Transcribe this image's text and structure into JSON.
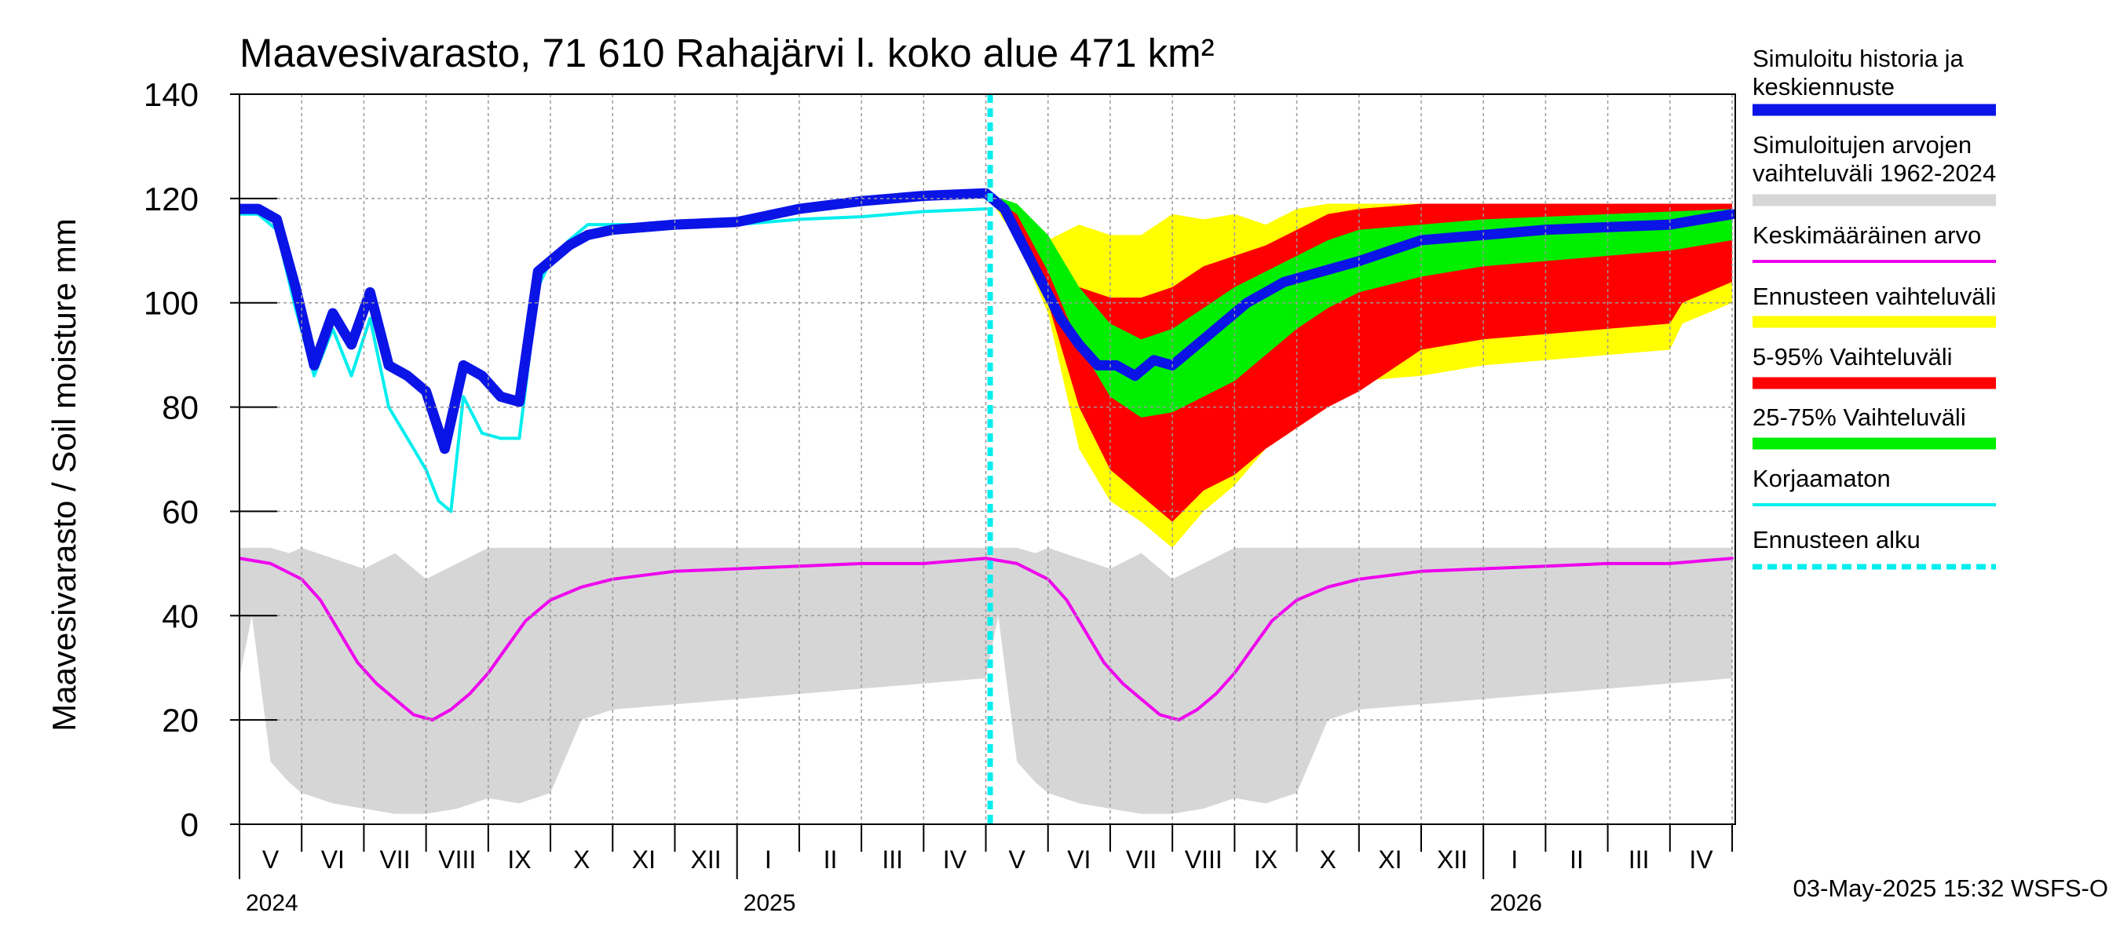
{
  "chart_data": {
    "type": "area",
    "title": "Maavesivarasto, 71 610 Rahajärvi l. koko alue 471 km²",
    "ylabel": "Maavesivarasto / Soil moisture   mm",
    "ylim": [
      0,
      140
    ],
    "yticks": [
      0,
      20,
      40,
      60,
      80,
      100,
      120,
      140
    ],
    "x_units": "months since 2024-05-01",
    "xlim": [
      0,
      24.05
    ],
    "forecast_start": 12.07,
    "grid": true,
    "month_labels": [
      "V",
      "VI",
      "VII",
      "VIII",
      "IX",
      "X",
      "XI",
      "XII",
      "I",
      "II",
      "III",
      "IV",
      "V",
      "VI",
      "VII",
      "VIII",
      "IX",
      "X",
      "XI",
      "XII",
      "I",
      "II",
      "III",
      "IV"
    ],
    "year_labels": [
      {
        "label": "2024",
        "x": 0
      },
      {
        "label": "2025",
        "x": 8
      },
      {
        "label": "2026",
        "x": 20
      }
    ],
    "legend": [
      {
        "label": "Simuloitu historia ja keskiennuste",
        "color": "#0a14e6",
        "style": "thick"
      },
      {
        "label": "Simuloitujen arvojen vaihteluväli 1962-2024",
        "color": "#d6d6d6",
        "style": "thick"
      },
      {
        "label": "Keskimääräinen arvo",
        "color": "#ee00ee",
        "style": "thin"
      },
      {
        "label": "Ennusteen vaihteluväli",
        "color": "#ffff00",
        "style": "thick"
      },
      {
        "label": "5-95% Vaihteluväli",
        "color": "#ff0000",
        "style": "thick"
      },
      {
        "label": "25-75% Vaihteluväli",
        "color": "#00ee00",
        "style": "thick"
      },
      {
        "label": "Korjaamaton",
        "color": "#00eeee",
        "style": "thin"
      },
      {
        "label": "Ennusteen alku",
        "color": "#00eeee",
        "style": "dashed"
      }
    ],
    "timestamp": "03-May-2025 15:32 WSFS-O",
    "series": {
      "historical_range": {
        "color": "#d6d6d6",
        "x": [
          0,
          0.2,
          0.5,
          0.8,
          1.0,
          1.5,
          2.0,
          2.5,
          3.0,
          3.5,
          4.0,
          4.5,
          5.0,
          5.5,
          6.0,
          7.0,
          8.0,
          10.0,
          12.0,
          12.2,
          12.5,
          12.8,
          13.0,
          13.5,
          14.0,
          14.5,
          15.0,
          15.5,
          16.0,
          16.5,
          17.0,
          17.5,
          18.0,
          19.0,
          20.0,
          22.0,
          24.0
        ],
        "lower": [
          28,
          40,
          12,
          8,
          6,
          4,
          3,
          2,
          2,
          3,
          5,
          4,
          6,
          20,
          22,
          23,
          24,
          26,
          28,
          40,
          12,
          8,
          6,
          4,
          3,
          2,
          2,
          3,
          5,
          4,
          6,
          20,
          22,
          23,
          24,
          26,
          28
        ],
        "upper": [
          53,
          53,
          53,
          52,
          53,
          51,
          49,
          52,
          47,
          50,
          53,
          53,
          53,
          53,
          53,
          53,
          53,
          53,
          53,
          53,
          53,
          52,
          53,
          51,
          49,
          52,
          47,
          50,
          53,
          53,
          53,
          53,
          53,
          53,
          53,
          53,
          53
        ]
      },
      "mean": {
        "name": "Keskimääräinen arvo",
        "color": "#ee00ee",
        "x": [
          0,
          0.5,
          1.0,
          1.3,
          1.6,
          1.9,
          2.2,
          2.5,
          2.8,
          3.1,
          3.4,
          3.7,
          4.0,
          4.3,
          4.6,
          5.0,
          5.5,
          6.0,
          7.0,
          8.0,
          9.0,
          10.0,
          11.0,
          12.0,
          12.5,
          13.0,
          13.3,
          13.6,
          13.9,
          14.2,
          14.5,
          14.8,
          15.1,
          15.4,
          15.7,
          16.0,
          16.3,
          16.6,
          17.0,
          17.5,
          18.0,
          19.0,
          20.0,
          21.0,
          22.0,
          23.0,
          24.0
        ],
        "y": [
          51,
          50,
          47,
          43,
          37,
          31,
          27,
          24,
          21,
          20,
          22,
          25,
          29,
          34,
          39,
          43,
          45.5,
          47,
          48.5,
          49,
          49.5,
          50,
          50,
          51,
          50,
          47,
          43,
          37,
          31,
          27,
          24,
          21,
          20,
          22,
          25,
          29,
          34,
          39,
          43,
          45.5,
          47,
          48.5,
          49,
          49.5,
          50,
          50,
          51
        ]
      },
      "simulated": {
        "name": "Simuloitu historia ja keskiennuste",
        "color": "#0a14e6",
        "x": [
          0,
          0.3,
          0.6,
          0.9,
          1.2,
          1.5,
          1.8,
          2.1,
          2.4,
          2.7,
          3.0,
          3.3,
          3.6,
          3.9,
          4.2,
          4.5,
          4.8,
          5.0,
          5.3,
          5.6,
          6.0,
          6.5,
          7.0,
          8.0,
          9.0,
          10.0,
          11.0,
          12.0,
          12.3,
          12.6,
          12.9,
          13.2,
          13.5,
          13.8,
          14.1,
          14.4,
          14.7,
          15.0,
          15.3,
          15.6,
          15.9,
          16.2,
          16.5,
          16.8,
          17.1,
          17.4,
          17.7,
          18.0,
          18.5,
          19.0,
          20.0,
          21.0,
          22.0,
          23.0,
          24.0
        ],
        "y": [
          118,
          118,
          116,
          103,
          88,
          98,
          92,
          102,
          88,
          86,
          83,
          72,
          88,
          86,
          82,
          81,
          106,
          108,
          111,
          113,
          114,
          114.5,
          115,
          115.5,
          118,
          119.5,
          120.5,
          121,
          118,
          111,
          104,
          97,
          92,
          88,
          88,
          86,
          89,
          88,
          91,
          94,
          97,
          100,
          102,
          104,
          105,
          106,
          107,
          108,
          110,
          112,
          113,
          114,
          114.5,
          115,
          117
        ]
      },
      "uncorrected": {
        "name": "Korjaamaton",
        "color": "#00eeee",
        "x": [
          0,
          0.3,
          0.6,
          0.9,
          1.2,
          1.5,
          1.8,
          2.1,
          2.4,
          2.7,
          3.0,
          3.2,
          3.4,
          3.6,
          3.9,
          4.2,
          4.5,
          4.8,
          5.0,
          5.3,
          5.6,
          6.0,
          7.0,
          8.0,
          9.0,
          10.0,
          11.0,
          12.0
        ],
        "y": [
          117,
          117,
          114,
          99,
          86,
          95,
          86,
          97,
          80,
          74,
          68,
          62,
          60,
          82,
          75,
          74,
          74,
          103,
          108,
          112,
          115,
          115,
          115,
          115,
          116,
          116.5,
          117.5,
          118
        ]
      },
      "forecast_range": {
        "name": "Ennusteen vaihteluväli",
        "color": "#ffff00",
        "x": [
          12.0,
          12.5,
          13.0,
          13.5,
          14.0,
          14.5,
          15.0,
          15.5,
          16.0,
          16.5,
          17.0,
          17.5,
          18.0,
          19.0,
          20.0,
          21.0,
          22.0,
          23.0,
          23.2,
          24.0
        ],
        "lower": [
          121,
          112,
          98,
          72,
          62,
          58,
          53,
          60,
          65,
          72,
          76,
          80,
          85,
          86,
          88,
          89,
          90,
          91,
          96,
          100
        ],
        "upper": [
          121,
          118,
          112,
          115,
          113,
          113,
          117,
          116,
          117,
          115,
          118,
          119,
          119,
          119,
          119,
          119,
          119,
          119,
          119,
          119
        ]
      },
      "p5_95": {
        "name": "5-95% Vaihteluväli",
        "color": "#ff0000",
        "x": [
          12.0,
          12.5,
          13.0,
          13.5,
          14.0,
          14.5,
          15.0,
          15.5,
          16.0,
          16.5,
          17.0,
          17.5,
          18.0,
          19.0,
          20.0,
          21.0,
          22.0,
          23.0,
          23.2,
          24.0
        ],
        "lower": [
          121,
          114,
          100,
          80,
          68,
          63,
          58,
          64,
          67,
          72,
          76,
          80,
          83,
          91,
          93,
          94,
          95,
          96,
          100,
          104
        ],
        "upper": [
          121,
          118,
          110,
          103,
          101,
          101,
          103,
          107,
          109,
          111,
          114,
          117,
          118,
          119,
          119,
          119,
          119,
          119,
          119,
          119
        ]
      },
      "p25_75": {
        "name": "25-75% Vaihteluväli",
        "color": "#00ee00",
        "x": [
          12.0,
          12.5,
          13.0,
          13.5,
          14.0,
          14.5,
          15.0,
          15.5,
          16.0,
          16.5,
          17.0,
          17.5,
          18.0,
          19.0,
          20.0,
          21.0,
          22.0,
          23.0,
          24.0
        ],
        "lower": [
          121,
          117,
          106,
          92,
          82,
          78,
          79,
          82,
          85,
          90,
          95,
          99,
          102,
          105,
          107,
          108,
          109,
          110,
          112
        ],
        "upper": [
          121,
          119,
          113,
          103,
          96,
          93,
          95,
          99,
          103,
          106,
          109,
          112,
          114,
          115,
          116,
          116.5,
          117,
          117.5,
          118
        ]
      }
    }
  }
}
